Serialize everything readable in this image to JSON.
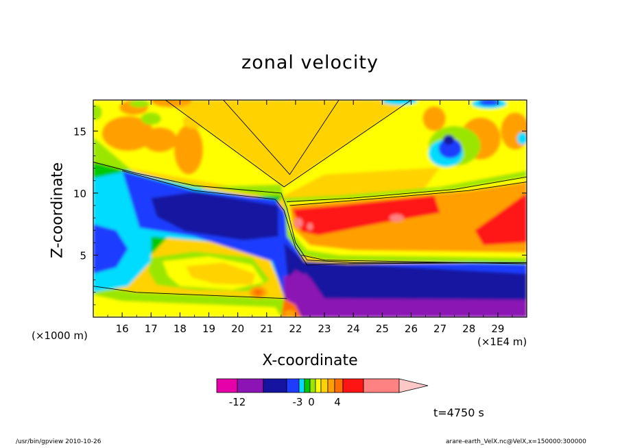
{
  "chart_data": {
    "type": "heatmap",
    "title": "zonal velocity",
    "xlabel": "X-coordinate",
    "ylabel": "Z-coordinate",
    "x_unit_note": "(×1E4 m)",
    "y_unit_note": "(×1000 m)",
    "xlim": [
      15.0,
      30.0
    ],
    "ylim": [
      0.0,
      17.5
    ],
    "x_ticks": [
      "16",
      "17",
      "18",
      "19",
      "20",
      "21",
      "22",
      "23",
      "24",
      "25",
      "26",
      "27",
      "28",
      "29"
    ],
    "y_ticks": [
      "5",
      "10",
      "15"
    ],
    "colorbar": {
      "tick_labels": [
        "-12",
        "-3",
        "0",
        "4"
      ],
      "colors": [
        "#e600aa",
        "#8c14b4",
        "#1414a0",
        "#1e3cff",
        "#00dcff",
        "#00c800",
        "#9be600",
        "#ffff00",
        "#ffd200",
        "#ffa000",
        "#ff6e00",
        "#ff1414",
        "#ff8282",
        "#ffc8c8"
      ]
    },
    "annotation": "t=4750 s"
  },
  "footer": {
    "left": "/usr/bin/gpview   2010-10-26",
    "right": "arare-earth_VelX.nc@VelX,x=150000:300000"
  }
}
